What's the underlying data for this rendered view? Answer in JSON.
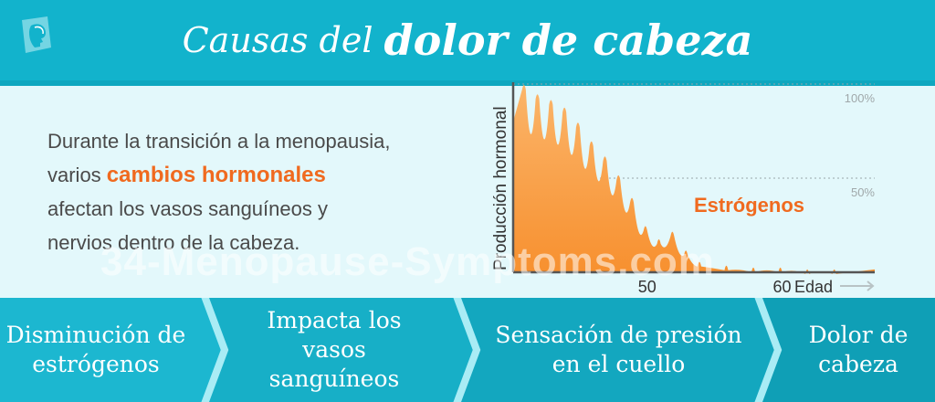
{
  "header": {
    "title_light": "Causas del",
    "title_bold": "dolor de cabeza"
  },
  "intro": {
    "line1": "Durante la transición a la menopausia,",
    "line2_pre": "varios ",
    "line2_highlight": "cambios hormonales",
    "line3": "afectan los vasos sanguíneos y",
    "line4": "nervios dentro de la cabeza."
  },
  "watermark": "34-Menopause-Symptoms.com",
  "chart_data": {
    "type": "area",
    "ylabel": "Producción hormonal",
    "xlabel": "Edad",
    "series_label": "Estrógenos",
    "x_ticks": [
      "50",
      "60"
    ],
    "y_ticks": [
      "100%",
      "50%"
    ],
    "ylim": [
      0,
      100
    ],
    "color": "#f7902f",
    "x": [
      41,
      42,
      43,
      44,
      45,
      46,
      47,
      48,
      49,
      50,
      51,
      52,
      53,
      54,
      56,
      58,
      60,
      62,
      64
    ],
    "values": [
      100,
      95,
      92,
      88,
      80,
      70,
      62,
      52,
      40,
      25,
      18,
      22,
      12,
      6,
      4,
      3,
      3,
      2,
      2
    ]
  },
  "steps": [
    {
      "label": "Disminución de estrógenos"
    },
    {
      "label": "Impacta los vasos sanguíneos"
    },
    {
      "label": "Sensación de presión en el cuello"
    },
    {
      "label": "Dolor de cabeza"
    }
  ],
  "colors": {
    "header": "#12b3cc",
    "highlight": "#f06a1f",
    "step_colors": [
      "#1cb7d0",
      "#17afc7",
      "#13a7bf",
      "#0f9fb6"
    ]
  }
}
